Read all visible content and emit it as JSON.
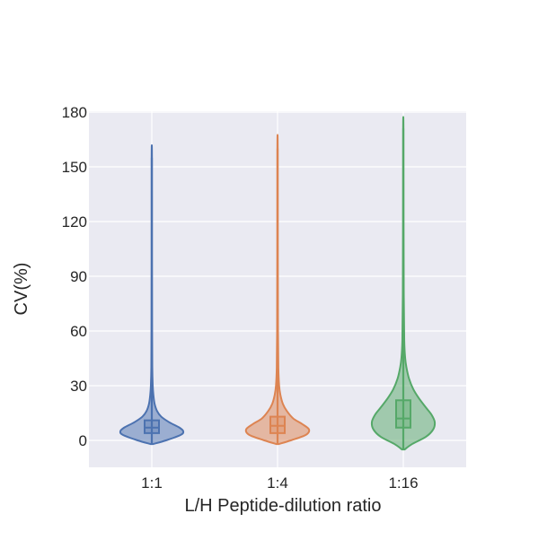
{
  "chart_data": {
    "type": "violin",
    "title": "",
    "xlabel": "L/H Peptide-dilution ratio",
    "ylabel": "CV(%)",
    "ylim": [
      -14,
      180
    ],
    "yticks": [
      0,
      30,
      60,
      90,
      120,
      150,
      180
    ],
    "grid": true,
    "categories": [
      "1:1",
      "1:4",
      "1:16"
    ],
    "series": [
      {
        "category": "1:1",
        "color": "#4c72b0",
        "min": -2,
        "q1": 4,
        "median": 7,
        "q3": 11,
        "max": 155,
        "profile": [
          [
            -2,
            0.04
          ],
          [
            0,
            0.45
          ],
          [
            3,
            0.92
          ],
          [
            5,
            1.0
          ],
          [
            7,
            0.88
          ],
          [
            10,
            0.55
          ],
          [
            13,
            0.3
          ],
          [
            16,
            0.17
          ],
          [
            20,
            0.09
          ],
          [
            25,
            0.05
          ],
          [
            30,
            0.03
          ],
          [
            40,
            0.015
          ],
          [
            60,
            0.01
          ],
          [
            100,
            0.006
          ],
          [
            155,
            0.005
          ]
        ]
      },
      {
        "category": "1:4",
        "color": "#dd8452",
        "min": -2,
        "q1": 4,
        "median": 8,
        "q3": 13,
        "max": 160,
        "profile": [
          [
            -2,
            0.04
          ],
          [
            0,
            0.42
          ],
          [
            3,
            0.9
          ],
          [
            6,
            1.0
          ],
          [
            9,
            0.78
          ],
          [
            12,
            0.5
          ],
          [
            16,
            0.3
          ],
          [
            20,
            0.17
          ],
          [
            25,
            0.09
          ],
          [
            30,
            0.05
          ],
          [
            40,
            0.025
          ],
          [
            60,
            0.014
          ],
          [
            100,
            0.008
          ],
          [
            160,
            0.005
          ]
        ]
      },
      {
        "category": "1:16",
        "color": "#55a868",
        "min": -5,
        "q1": 7,
        "median": 12,
        "q3": 22,
        "max": 171,
        "profile": [
          [
            -5,
            0.04
          ],
          [
            -2,
            0.28
          ],
          [
            2,
            0.72
          ],
          [
            6,
            0.95
          ],
          [
            10,
            1.0
          ],
          [
            14,
            0.9
          ],
          [
            18,
            0.72
          ],
          [
            23,
            0.5
          ],
          [
            28,
            0.32
          ],
          [
            34,
            0.18
          ],
          [
            40,
            0.1
          ],
          [
            45,
            0.06
          ],
          [
            55,
            0.03
          ],
          [
            80,
            0.015
          ],
          [
            120,
            0.008
          ],
          [
            171,
            0.005
          ]
        ]
      }
    ]
  }
}
